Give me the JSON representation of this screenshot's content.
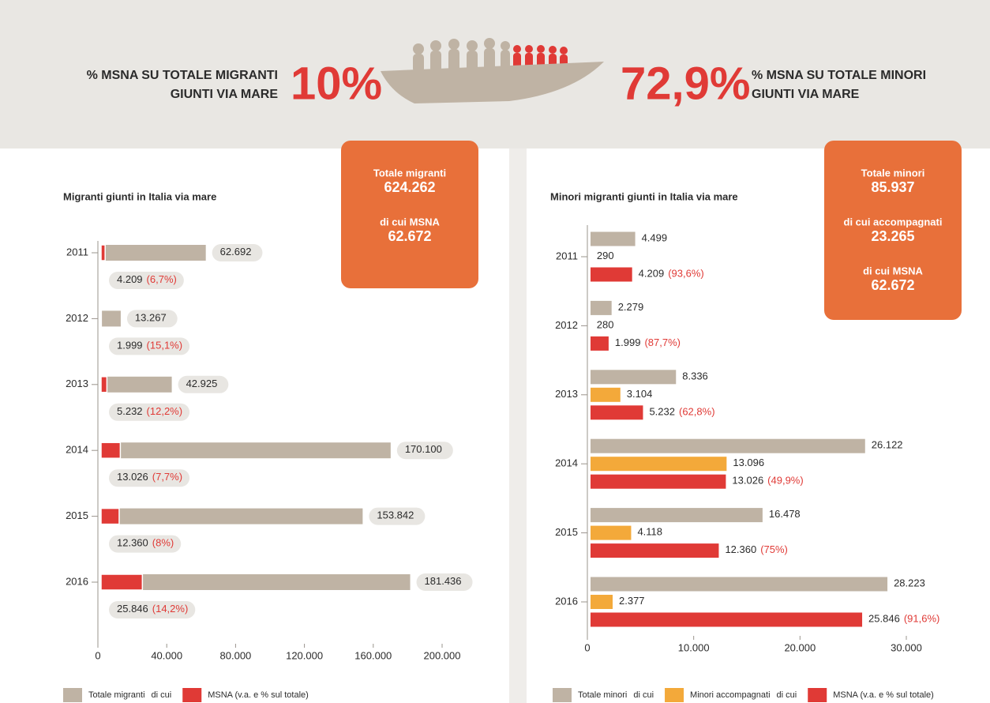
{
  "header": {
    "left_label": [
      "% MSNA SU TOTALE MIGRANTI",
      "GIUNTI VIA MARE"
    ],
    "left_value": "10%",
    "right_value": "72,9%",
    "right_label": [
      "% MSNA SU TOTALE MINORI",
      "GIUNTI VIA MARE"
    ]
  },
  "chart_data": [
    {
      "type": "bar",
      "orientation": "horizontal",
      "barmode": "overlay",
      "title": "Migranti giunti in Italia via mare",
      "callout": [
        {
          "label": "Totale migranti",
          "value": "624.262"
        },
        {
          "label": "di cui MSNA",
          "value": "62.672"
        }
      ],
      "categories": [
        "2011",
        "2012",
        "2013",
        "2014",
        "2015",
        "2016"
      ],
      "series": [
        {
          "name": "Totale migranti",
          "color": "#bfb3a4",
          "values": [
            62692,
            13267,
            42925,
            170100,
            153842,
            181436
          ],
          "value_labels": [
            "62.692",
            "13.267",
            "42.925",
            "170.100",
            "153.842",
            "181.436"
          ]
        },
        {
          "name": "MSNA (v.a. e % sul totale)",
          "color": "#e03a36",
          "values": [
            4209,
            1999,
            5232,
            13026,
            12360,
            25846
          ],
          "value_labels": [
            "4.209",
            "1.999",
            "5.232",
            "13.026",
            "12.360",
            "25.846"
          ],
          "shares": [
            6.7,
            15.1,
            12.2,
            7.7,
            8,
            14.2
          ],
          "share_labels": [
            "(6,7%)",
            "(15,1%)",
            "(12,2%)",
            "(7,7%)",
            "(8%)",
            "(14,2%)"
          ]
        }
      ],
      "legend_joiner": "di cui",
      "xlim": [
        0,
        200000
      ],
      "xticks": [
        0,
        {
          "value": 40000,
          "label": "40.000"
        },
        {
          "value": 80000,
          "label": "80.000"
        },
        {
          "value": 120000,
          "label": "120.000"
        },
        {
          "value": 160000,
          "label": "160.000"
        },
        {
          "value": 200000,
          "label": "200.000"
        }
      ]
    },
    {
      "type": "bar",
      "orientation": "horizontal",
      "barmode": "group",
      "title": "Minori migranti giunti in Italia via mare",
      "callout": [
        {
          "label": "Totale minori",
          "value": "85.937"
        },
        {
          "label": "di cui accompagnati",
          "value": "23.265"
        },
        {
          "label": "di cui MSNA",
          "value": "62.672"
        }
      ],
      "categories": [
        "2011",
        "2012",
        "2013",
        "2014",
        "2015",
        "2016"
      ],
      "series": [
        {
          "name": "Totale minori",
          "color": "#bfb3a4",
          "values": [
            4499,
            2279,
            8336,
            26122,
            16478,
            28223
          ],
          "value_labels": [
            "4.499",
            "2.279",
            "8.336",
            "26.122",
            "16.478",
            "28.223"
          ]
        },
        {
          "name": "Minori accompagnati",
          "color": "#f3a93a",
          "values": [
            290,
            280,
            3104,
            13096,
            4118,
            2377
          ],
          "value_labels": [
            "290",
            "280",
            "3.104",
            "13.096",
            "4.118",
            "2.377"
          ]
        },
        {
          "name": "MSNA (v.a. e % sul totale)",
          "color": "#e03a36",
          "values": [
            4209,
            1999,
            5232,
            13026,
            12360,
            25846
          ],
          "value_labels": [
            "4.209",
            "1.999",
            "5.232",
            "13.026",
            "12.360",
            "25.846"
          ],
          "shares": [
            93.6,
            87.7,
            62.8,
            49.9,
            75,
            91.6
          ],
          "share_labels": [
            "(93,6%)",
            "(87,7%)",
            "(62,8%)",
            "(49,9%)",
            "(75%)",
            "(91,6%)"
          ]
        }
      ],
      "legend_joiner": "di cui",
      "xlim": [
        0,
        30000
      ],
      "xticks": [
        0,
        {
          "value": 10000,
          "label": "10.000"
        },
        {
          "value": 20000,
          "label": "20.000"
        },
        {
          "value": 30000,
          "label": "30.000"
        }
      ]
    }
  ]
}
